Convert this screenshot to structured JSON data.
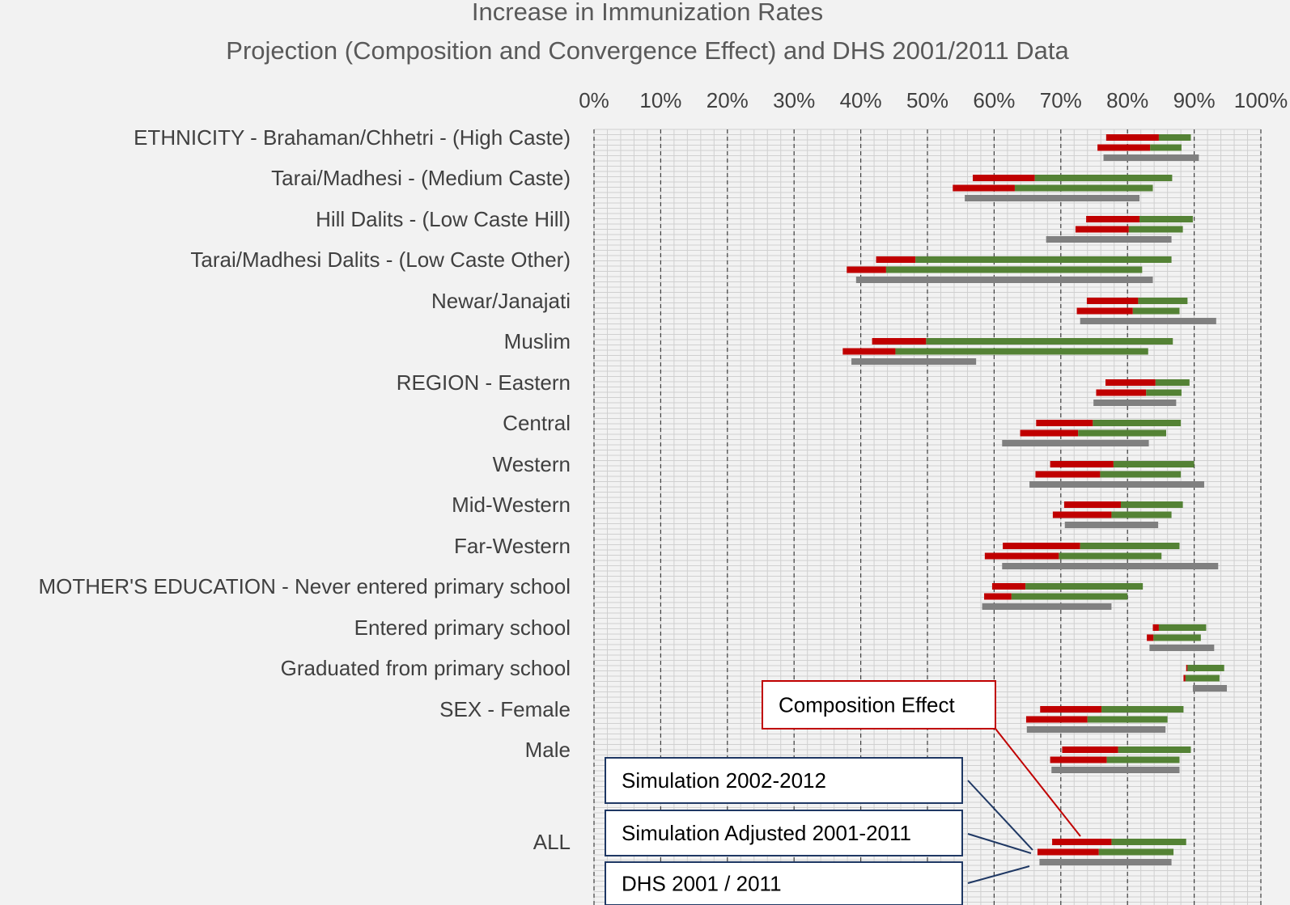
{
  "chart_data": {
    "type": "bar",
    "subtype": "floating-range-bars",
    "title_lines": [
      "Increase in Immunization Rates",
      "Projection (Composition and Convergence Effect) and DHS 2001/2011 Data"
    ],
    "xlim": [
      0,
      100
    ],
    "x_ticks": [
      0,
      10,
      20,
      30,
      40,
      50,
      60,
      70,
      80,
      90,
      100
    ],
    "x_tick_labels": [
      "0%",
      "10%",
      "20%",
      "30%",
      "40%",
      "50%",
      "60%",
      "70%",
      "80%",
      "90%",
      "100%"
    ],
    "x_axis_position": "top",
    "grid": true,
    "colors": {
      "composition": "#c00000",
      "convergence": "#548235",
      "dhs": "#808080",
      "sim_callout_border": "#1f3864",
      "comp_callout_border": "#c00000",
      "grid_major": "#404040",
      "grid_minor": "#d0d0d0"
    },
    "categories": [
      "ETHNICITY - Brahaman/Chhetri - (High Caste)",
      "Tarai/Madhesi - (Medium Caste)",
      "Hill Dalits - (Low Caste Hill)",
      "Tarai/Madhesi Dalits - (Low Caste Other)",
      "Newar/Janajati",
      "Muslim",
      "REGION - Eastern",
      "Central",
      "Western",
      "Mid-Western",
      "Far-Western",
      "MOTHER'S EDUCATION - Never entered primary school",
      "Entered primary school",
      "Graduated from primary school",
      "SEX - Female",
      "Male",
      "ALL"
    ],
    "series": [
      {
        "name": "Simulation 2002-2012",
        "start": [
          76.8,
          56.8,
          73.8,
          42.3,
          73.9,
          41.7,
          76.7,
          66.3,
          68.4,
          70.5,
          61.3,
          59.7,
          83.8,
          88.8,
          66.9,
          70.2,
          68.7
        ],
        "composition_end": [
          84.7,
          66.1,
          81.8,
          48.2,
          81.6,
          49.8,
          84.2,
          74.8,
          77.9,
          79.0,
          72.9,
          64.7,
          84.7,
          89.0,
          76.1,
          78.6,
          77.6
        ],
        "end": [
          89.5,
          86.7,
          89.8,
          86.6,
          89.0,
          86.8,
          89.3,
          88.0,
          90.0,
          88.3,
          87.8,
          82.3,
          91.8,
          94.5,
          88.4,
          89.5,
          88.8
        ]
      },
      {
        "name": "Simulation Adjusted 2001-2011",
        "start": [
          75.5,
          53.8,
          72.2,
          37.9,
          72.4,
          37.3,
          75.3,
          63.9,
          66.2,
          68.8,
          58.6,
          58.5,
          82.9,
          88.4,
          64.8,
          68.4,
          66.5
        ],
        "composition_end": [
          83.4,
          63.1,
          80.2,
          43.8,
          80.8,
          45.2,
          82.8,
          72.6,
          75.9,
          77.6,
          69.7,
          62.6,
          83.9,
          88.7,
          74.0,
          76.9,
          75.7
        ],
        "end": [
          88.1,
          83.8,
          88.3,
          82.2,
          87.8,
          83.1,
          88.1,
          85.8,
          88.0,
          86.6,
          85.1,
          80.0,
          91.0,
          93.8,
          86.0,
          87.8,
          86.9
        ]
      },
      {
        "name": "DHS 2001 / 2011",
        "start": [
          76.4,
          55.6,
          67.8,
          39.3,
          72.9,
          38.6,
          74.9,
          61.2,
          65.3,
          70.6,
          61.2,
          58.2,
          83.3,
          89.8,
          64.9,
          68.6,
          66.8
        ],
        "end": [
          90.7,
          81.8,
          86.6,
          83.8,
          93.3,
          57.3,
          87.3,
          83.2,
          91.5,
          84.6,
          93.6,
          77.6,
          93.0,
          94.9,
          85.7,
          87.8,
          86.6
        ]
      }
    ],
    "callouts": {
      "composition": "Composition Effect",
      "simulation": "Simulation 2002-2012",
      "simulation_adjusted": "Simulation Adjusted 2001-2011",
      "dhs": "DHS 2001 / 2011"
    }
  }
}
